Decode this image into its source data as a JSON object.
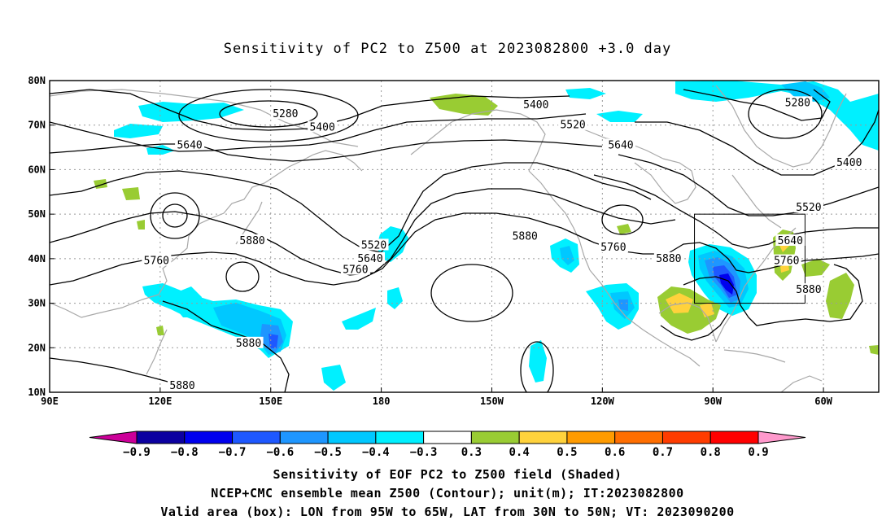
{
  "title": "Sensitivity of PC2 to Z500 at 2023082800 +3.0 day",
  "captions": [
    "Sensitivity of EOF PC2 to Z500 field (Shaded)",
    "NCEP+CMC ensemble mean Z500 (Contour); unit(m); IT:2023082800",
    "Valid area (box): LON from 95W to 65W, LAT from 30N to 50N; VT: 2023090200"
  ],
  "map": {
    "lon_range_east": [
      90,
      315
    ],
    "lat_range": [
      10,
      80
    ],
    "lon_ticks": [
      {
        "lon": 90,
        "label": "90E"
      },
      {
        "lon": 120,
        "label": "120E"
      },
      {
        "lon": 150,
        "label": "150E"
      },
      {
        "lon": 180,
        "label": "180"
      },
      {
        "lon": 210,
        "label": "150W"
      },
      {
        "lon": 240,
        "label": "120W"
      },
      {
        "lon": 270,
        "label": "90W"
      },
      {
        "lon": 300,
        "label": "60W"
      }
    ],
    "lat_ticks": [
      {
        "lat": 80,
        "label": "80N"
      },
      {
        "lat": 70,
        "label": "70N"
      },
      {
        "lat": 60,
        "label": "60N"
      },
      {
        "lat": 50,
        "label": "50N"
      },
      {
        "lat": 40,
        "label": "40N"
      },
      {
        "lat": 30,
        "label": "30N"
      },
      {
        "lat": 20,
        "label": "20N"
      },
      {
        "lat": 10,
        "label": "10N"
      }
    ],
    "valid_box": {
      "lon_min": 265,
      "lon_max": 295,
      "lat_min": 30,
      "lat_max": 50
    },
    "contour_labels": [
      {
        "text": "5280",
        "lon": 154,
        "lat": 72.5
      },
      {
        "text": "5400",
        "lon": 164,
        "lat": 69.5
      },
      {
        "text": "5640",
        "lon": 128,
        "lat": 65.5
      },
      {
        "text": "5400",
        "lon": 222,
        "lat": 74.5
      },
      {
        "text": "5520",
        "lon": 232,
        "lat": 70
      },
      {
        "text": "5640",
        "lon": 245,
        "lat": 65.5
      },
      {
        "text": "5280",
        "lon": 293,
        "lat": 75
      },
      {
        "text": "5400",
        "lon": 307,
        "lat": 61.5
      },
      {
        "text": "5520",
        "lon": 296,
        "lat": 51.5
      },
      {
        "text": "5640",
        "lon": 291,
        "lat": 44
      },
      {
        "text": "5760",
        "lon": 290,
        "lat": 39.5
      },
      {
        "text": "5880",
        "lon": 296,
        "lat": 33
      },
      {
        "text": "5880",
        "lon": 145,
        "lat": 44
      },
      {
        "text": "5760",
        "lon": 119,
        "lat": 39.5
      },
      {
        "text": "5520",
        "lon": 178,
        "lat": 43
      },
      {
        "text": "5640",
        "lon": 177,
        "lat": 40
      },
      {
        "text": "5760",
        "lon": 173,
        "lat": 37.5
      },
      {
        "text": "5880",
        "lon": 219,
        "lat": 45
      },
      {
        "text": "5760",
        "lon": 243,
        "lat": 42.5
      },
      {
        "text": "5880",
        "lon": 258,
        "lat": 40
      },
      {
        "text": "5880",
        "lon": 144,
        "lat": 21
      },
      {
        "text": "5880",
        "lon": 126,
        "lat": 11.5
      }
    ]
  },
  "colorbar": {
    "labels": [
      "−0.9",
      "−0.8",
      "−0.7",
      "−0.6",
      "−0.5",
      "−0.4",
      "−0.3",
      "0.3",
      "0.4",
      "0.5",
      "0.6",
      "0.7",
      "0.8",
      "0.9"
    ],
    "colors": [
      "#0c00a0",
      "#0000ee",
      "#1e58ff",
      "#1e96ff",
      "#00c8ff",
      "#00f0ff",
      "#ffffff",
      "#99cc33",
      "#ffd23c",
      "#ff9b00",
      "#ff6e00",
      "#ff3c00",
      "#ff0000"
    ],
    "low_extend_color": "#cc0099",
    "high_extend_color": "#ff99cc"
  }
}
